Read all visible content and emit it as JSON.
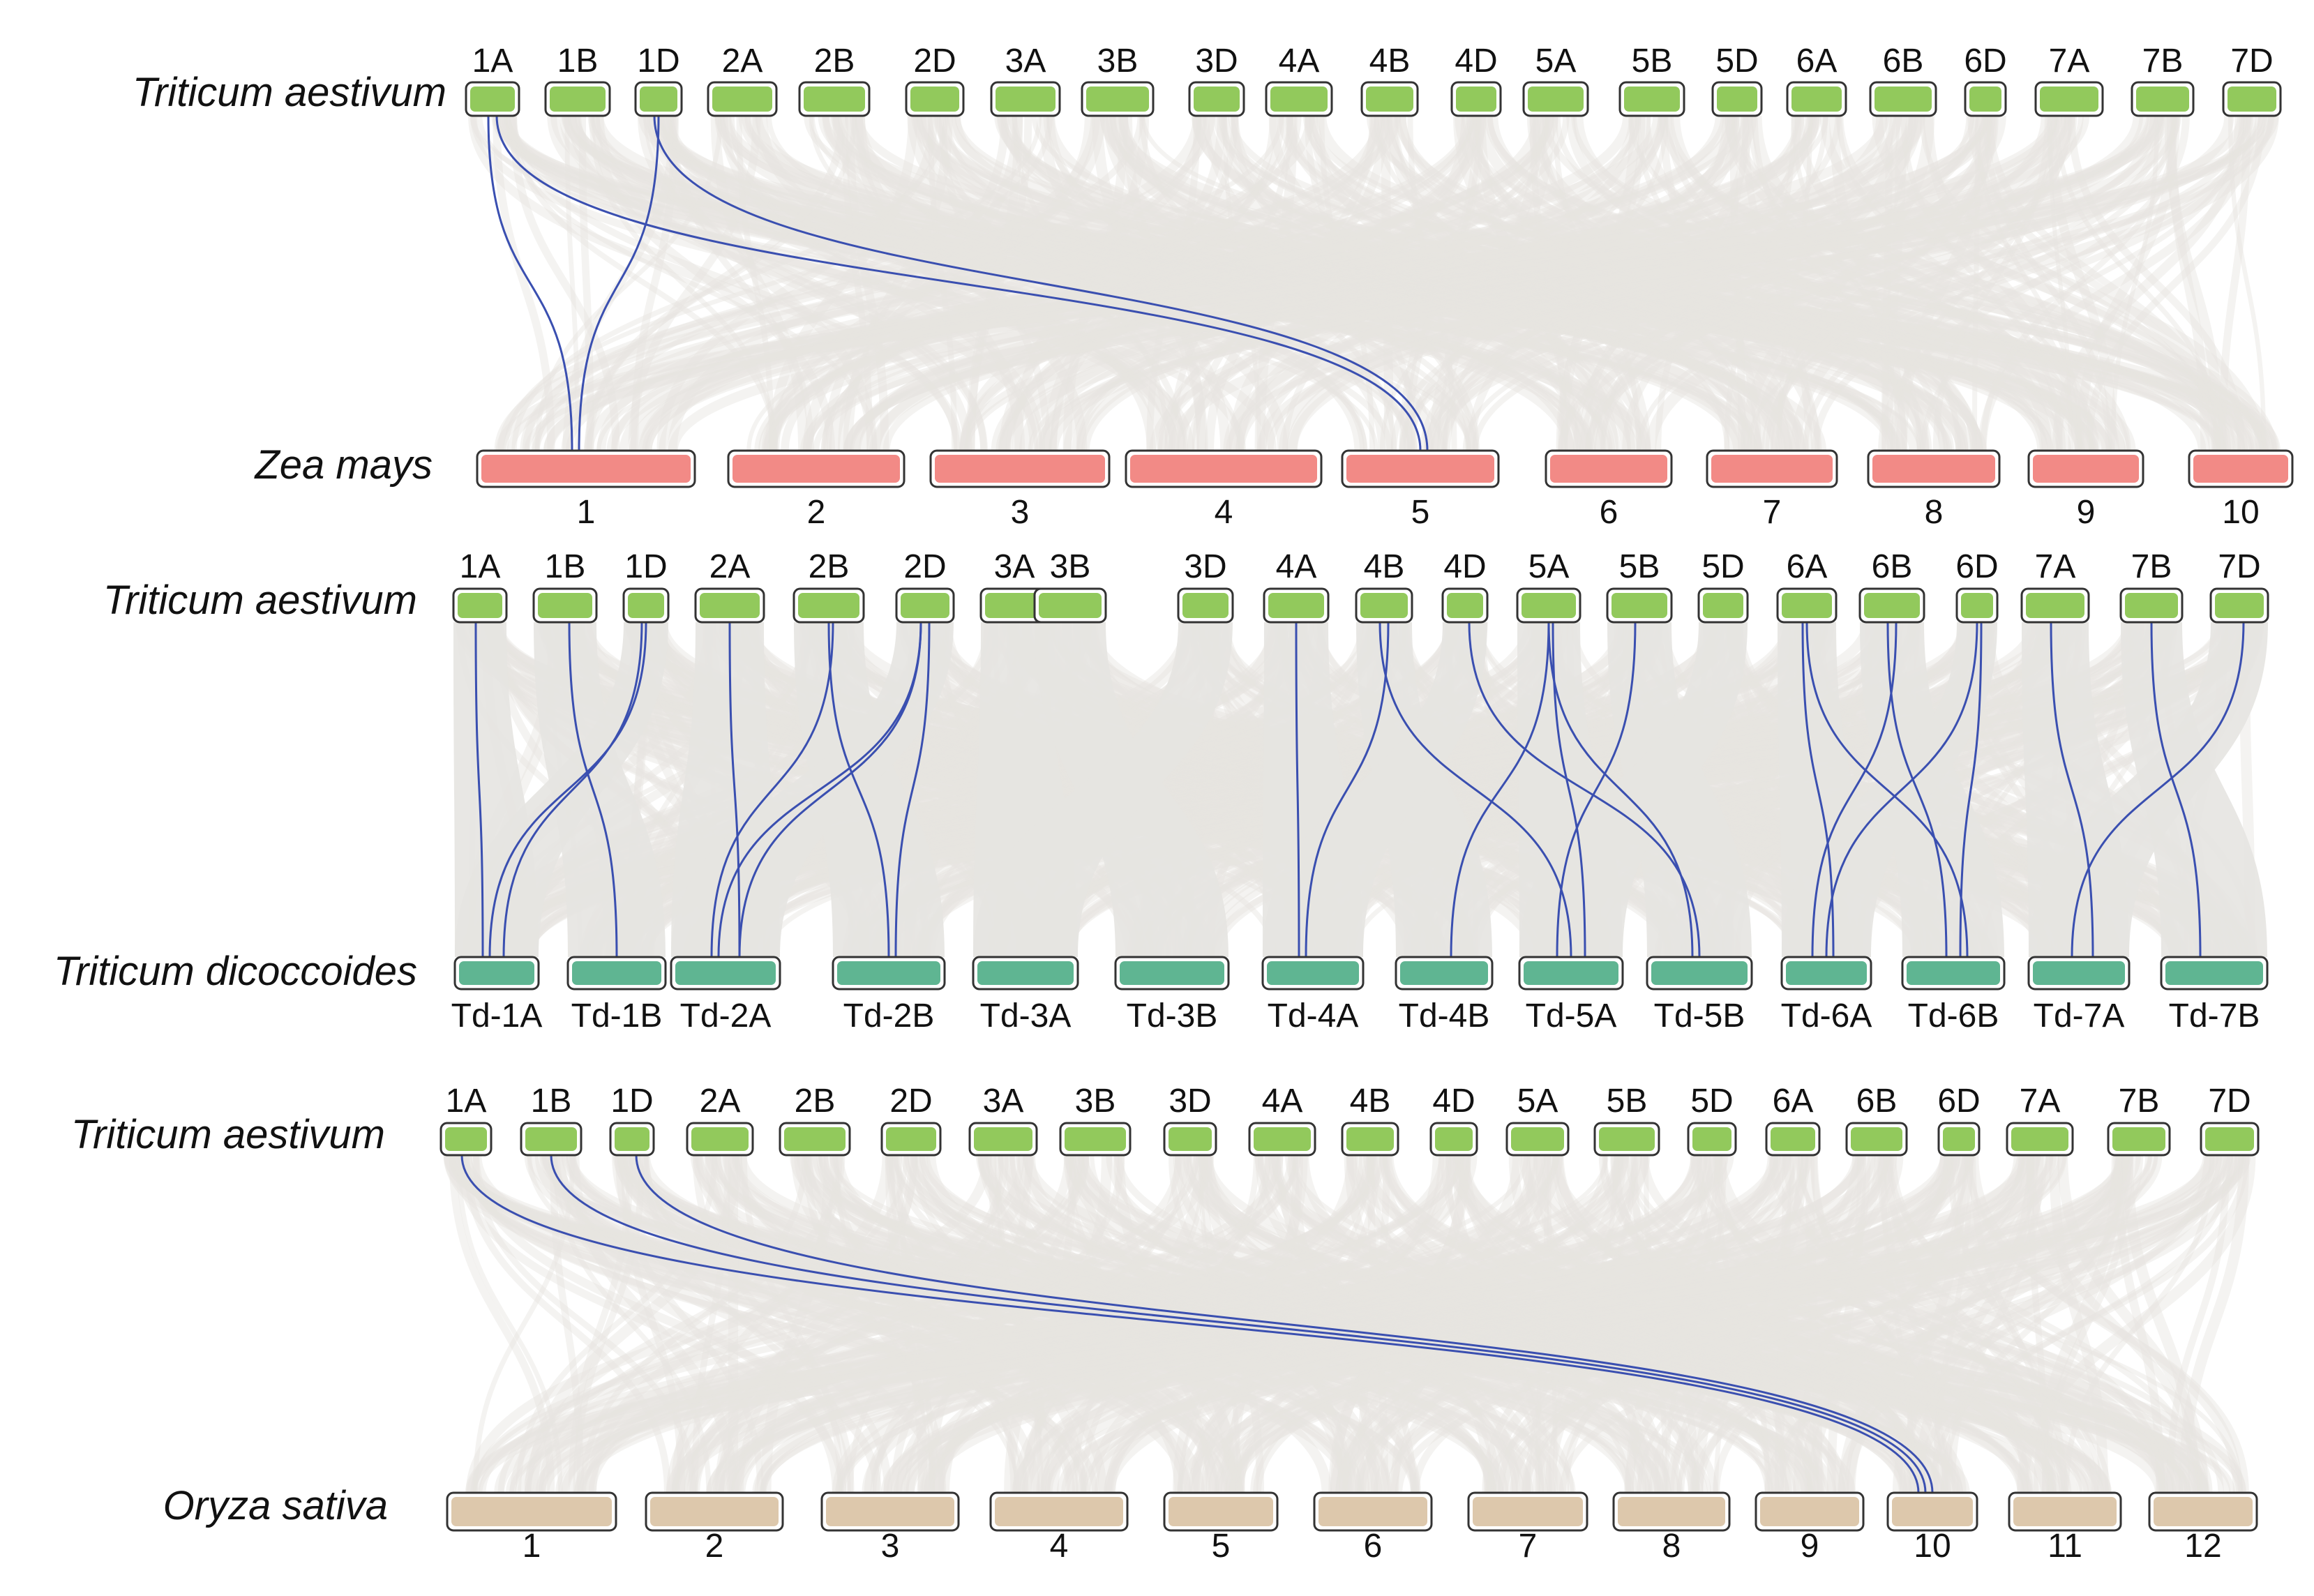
{
  "colors": {
    "background": "#ffffff",
    "synteny_background": "#e6e4e1",
    "highlight_link": "#3a4fb0",
    "wheat_chromosome": "#92c95c",
    "maize_chromosome": "#f28a86",
    "dicoccoides_chromosome": "#5fb592",
    "rice_chromosome": "#ddc8ac",
    "chromosome_outline": "#333333"
  },
  "wheat_chromosomes": [
    "1A",
    "1B",
    "1D",
    "2A",
    "2B",
    "2D",
    "3A",
    "3B",
    "3D",
    "4A",
    "4B",
    "4D",
    "5A",
    "5B",
    "5D",
    "6A",
    "6B",
    "6D",
    "7A",
    "7B",
    "7D"
  ],
  "panels": [
    {
      "id": "zea",
      "top_species": "Triticum aestivum",
      "bottom_species": "Zea mays",
      "bottom_chromosomes": [
        "1",
        "2",
        "3",
        "4",
        "5",
        "6",
        "7",
        "8",
        "9",
        "10"
      ],
      "highlight_links": [
        {
          "from": "1A",
          "to": "1"
        },
        {
          "from": "1D",
          "to": "1"
        },
        {
          "from": "1A",
          "to": "5"
        },
        {
          "from": "1D",
          "to": "5"
        }
      ]
    },
    {
      "id": "dicoccoides",
      "top_species": "Triticum aestivum",
      "bottom_species": "Triticum dicoccoides",
      "bottom_chromosomes": [
        "Td-1A",
        "Td-1B",
        "Td-2A",
        "Td-2B",
        "Td-3A",
        "Td-3B",
        "Td-4A",
        "Td-4B",
        "Td-5A",
        "Td-5B",
        "Td-6A",
        "Td-6B",
        "Td-7A",
        "Td-7B"
      ],
      "highlight_links": [
        {
          "from": "1A",
          "to": "Td-1A"
        },
        {
          "from": "1D",
          "to": "Td-1A"
        },
        {
          "from": "1B",
          "to": "Td-1B"
        },
        {
          "from": "1D",
          "to": "Td-1A"
        },
        {
          "from": "2A",
          "to": "Td-2A"
        },
        {
          "from": "2B",
          "to": "Td-2A"
        },
        {
          "from": "2D",
          "to": "Td-2A"
        },
        {
          "from": "2B",
          "to": "Td-2B"
        },
        {
          "from": "2D",
          "to": "Td-2B"
        },
        {
          "from": "2D",
          "to": "Td-2A"
        },
        {
          "from": "4A",
          "to": "Td-4A"
        },
        {
          "from": "4B",
          "to": "Td-4A"
        },
        {
          "from": "4B",
          "to": "Td-5A"
        },
        {
          "from": "5A",
          "to": "Td-4B"
        },
        {
          "from": "5A",
          "to": "Td-5A"
        },
        {
          "from": "5B",
          "to": "Td-5A"
        },
        {
          "from": "5A",
          "to": "Td-5B"
        },
        {
          "from": "4D",
          "to": "Td-5B"
        },
        {
          "from": "6A",
          "to": "Td-6A"
        },
        {
          "from": "6A",
          "to": "Td-6B"
        },
        {
          "from": "6B",
          "to": "Td-6A"
        },
        {
          "from": "6B",
          "to": "Td-6B"
        },
        {
          "from": "6D",
          "to": "Td-6A"
        },
        {
          "from": "6D",
          "to": "Td-6B"
        },
        {
          "from": "7A",
          "to": "Td-7A"
        },
        {
          "from": "7B",
          "to": "Td-7B"
        },
        {
          "from": "7D",
          "to": "Td-7A"
        }
      ]
    },
    {
      "id": "oryza",
      "top_species": "Triticum aestivum",
      "bottom_species": "Oryza sativa",
      "bottom_chromosomes": [
        "1",
        "2",
        "3",
        "4",
        "5",
        "6",
        "7",
        "8",
        "9",
        "10",
        "11",
        "12"
      ],
      "highlight_links": [
        {
          "from": "1A",
          "to": "10"
        },
        {
          "from": "1B",
          "to": "10"
        },
        {
          "from": "1D",
          "to": "10"
        }
      ]
    }
  ]
}
